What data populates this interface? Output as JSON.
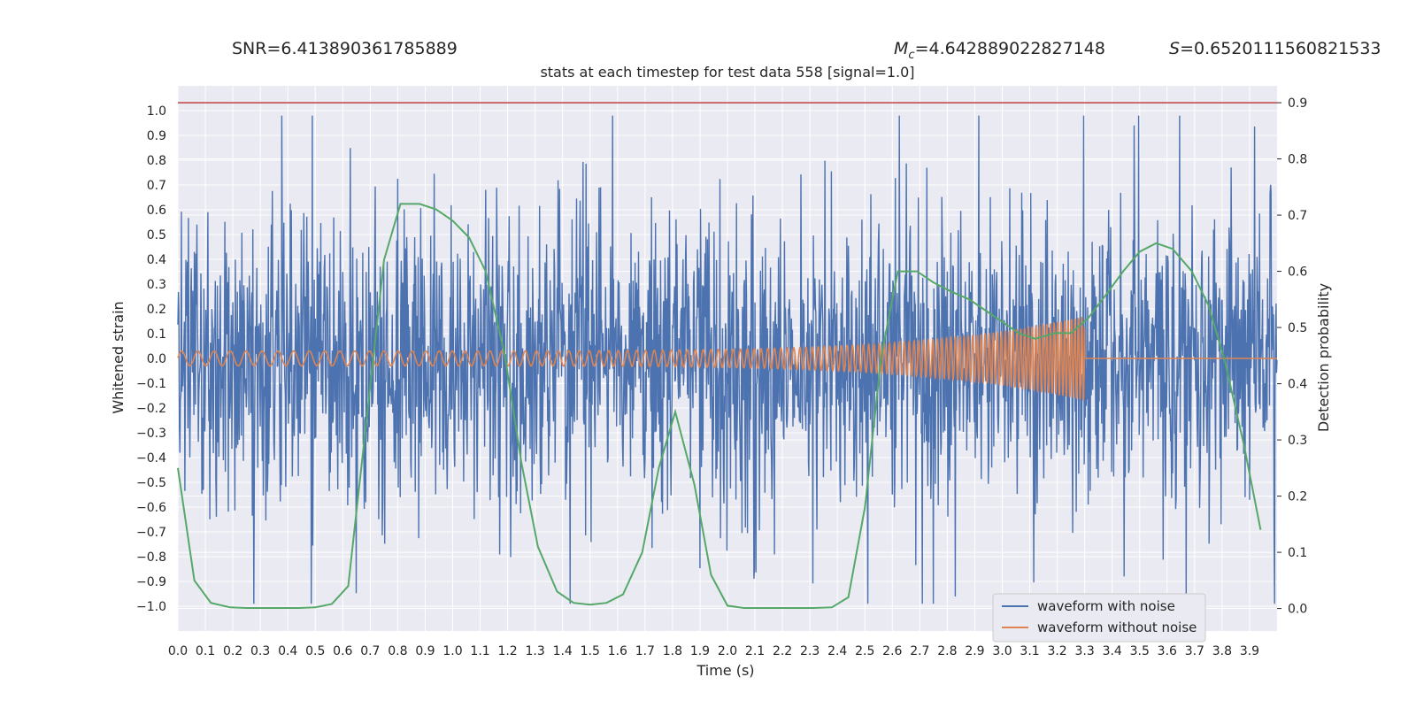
{
  "chart_data": {
    "type": "line",
    "header": {
      "snr": "SNR=6.413890361785889",
      "mc_symbol": "M",
      "mc_sub": "c",
      "mc_value": "=4.642889022827148",
      "s_symbol": "S",
      "s_value": "=0.6520111560821533"
    },
    "title": "stats at each timestep for test data 558 [signal=1.0]",
    "xlabel": "Time (s)",
    "ylabel": "Whitened strain",
    "y2label": "Detection probability",
    "xlim": [
      0.0,
      4.0
    ],
    "ylim": [
      -1.1,
      1.1
    ],
    "y2lim": [
      -0.04,
      0.93
    ],
    "x_ticks": [
      "0.0",
      "0.1",
      "0.2",
      "0.3",
      "0.4",
      "0.5",
      "0.6",
      "0.7",
      "0.8",
      "0.9",
      "1.0",
      "1.1",
      "1.2",
      "1.3",
      "1.4",
      "1.5",
      "1.6",
      "1.7",
      "1.8",
      "1.9",
      "2.0",
      "2.1",
      "2.2",
      "2.3",
      "2.4",
      "2.5",
      "2.6",
      "2.7",
      "2.8",
      "2.9",
      "3.0",
      "3.1",
      "3.2",
      "3.3",
      "3.4",
      "3.5",
      "3.6",
      "3.7",
      "3.8",
      "3.9"
    ],
    "y_ticks": [
      "1.0",
      "0.9",
      "0.8",
      "0.7",
      "0.6",
      "0.5",
      "0.4",
      "0.3",
      "0.2",
      "0.1",
      "0.0",
      "−0.1",
      "−0.2",
      "−0.3",
      "−0.4",
      "−0.5",
      "−0.6",
      "−0.7",
      "−0.8",
      "−0.9",
      "−1.0"
    ],
    "y2_ticks": [
      "0.9",
      "0.8",
      "0.7",
      "0.6",
      "0.5",
      "0.4",
      "0.3",
      "0.2",
      "0.1",
      "0.0"
    ],
    "threshold": 0.9,
    "legend": {
      "position": "lower-right",
      "entries": [
        {
          "label": "waveform with noise",
          "color": "#4c72b0"
        },
        {
          "label": "waveform without noise",
          "color": "#dd8452"
        }
      ]
    },
    "series": [
      {
        "name": "waveform with noise",
        "color": "#4c72b0",
        "kind": "noise",
        "amplitude": 0.95,
        "seed": 558
      },
      {
        "name": "waveform without noise",
        "color": "#dd8452",
        "kind": "chirp",
        "t_merge": 3.3,
        "amp_start": 0.03,
        "amp_end": 0.17
      },
      {
        "name": "detection probability",
        "color": "#55a868",
        "axis": "right",
        "x": [
          0.0,
          0.06,
          0.12,
          0.19,
          0.25,
          0.31,
          0.38,
          0.44,
          0.5,
          0.56,
          0.62,
          0.69,
          0.75,
          0.81,
          0.88,
          0.94,
          1.0,
          1.06,
          1.12,
          1.19,
          1.25,
          1.31,
          1.38,
          1.44,
          1.5,
          1.56,
          1.62,
          1.69,
          1.75,
          1.81,
          1.88,
          1.94,
          2.0,
          2.06,
          2.12,
          2.19,
          2.25,
          2.31,
          2.38,
          2.44,
          2.5,
          2.56,
          2.62,
          2.69,
          2.75,
          2.81,
          2.88,
          2.94,
          3.0,
          3.06,
          3.12,
          3.19,
          3.25,
          3.31,
          3.38,
          3.44,
          3.5,
          3.56,
          3.62,
          3.69,
          3.75,
          3.81,
          3.88,
          3.94
        ],
        "y": [
          0.25,
          0.05,
          0.01,
          0.002,
          0.001,
          0.001,
          0.001,
          0.001,
          0.002,
          0.008,
          0.04,
          0.35,
          0.62,
          0.72,
          0.72,
          0.71,
          0.69,
          0.66,
          0.6,
          0.45,
          0.26,
          0.11,
          0.03,
          0.01,
          0.007,
          0.01,
          0.025,
          0.1,
          0.25,
          0.35,
          0.22,
          0.06,
          0.005,
          0.001,
          0.001,
          0.001,
          0.001,
          0.001,
          0.002,
          0.02,
          0.18,
          0.45,
          0.6,
          0.6,
          0.58,
          0.565,
          0.55,
          0.53,
          0.51,
          0.49,
          0.48,
          0.49,
          0.49,
          0.515,
          0.56,
          0.6,
          0.635,
          0.65,
          0.64,
          0.6,
          0.54,
          0.44,
          0.29,
          0.14
        ]
      }
    ]
  }
}
